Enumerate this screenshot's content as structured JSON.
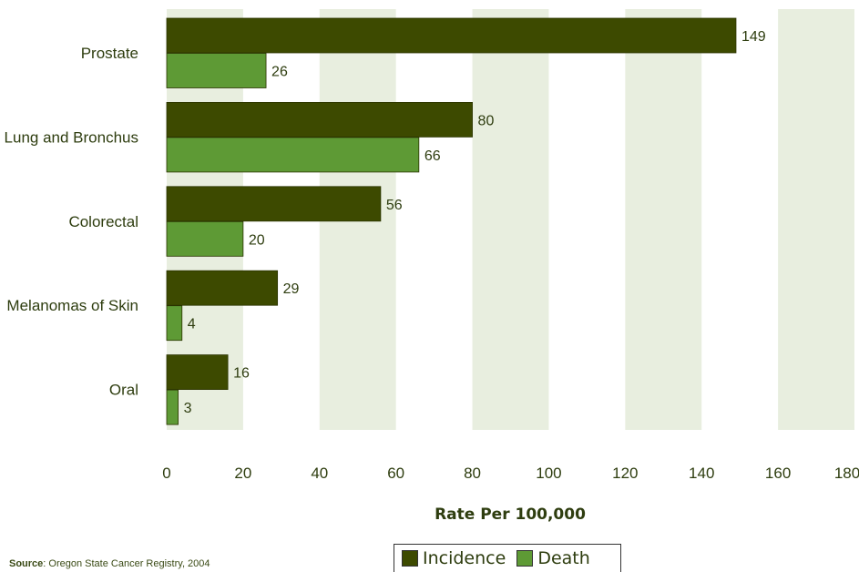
{
  "chart_data": {
    "type": "bar",
    "orientation": "horizontal",
    "categories": [
      "Prostate",
      "Lung and Bronchus",
      "Colorectal",
      "Melanomas of Skin",
      "Oral"
    ],
    "series": [
      {
        "name": "Incidence",
        "values": [
          149,
          80,
          56,
          29,
          16
        ],
        "color": "#3d4a00"
      },
      {
        "name": "Death",
        "values": [
          26,
          66,
          20,
          4,
          3
        ],
        "color": "#5e9a35"
      }
    ],
    "xlabel": "Rate Per 100,000",
    "xlim": [
      0,
      180
    ],
    "xticks": [
      "0",
      "20",
      "40",
      "60",
      "80",
      "100",
      "120",
      "140",
      "160",
      "180"
    ],
    "legend_position": "bottom-center",
    "band_color": "#e8eedf"
  },
  "source": {
    "label": "Source",
    "text": ": Oregon State Cancer Registry, 2004"
  }
}
